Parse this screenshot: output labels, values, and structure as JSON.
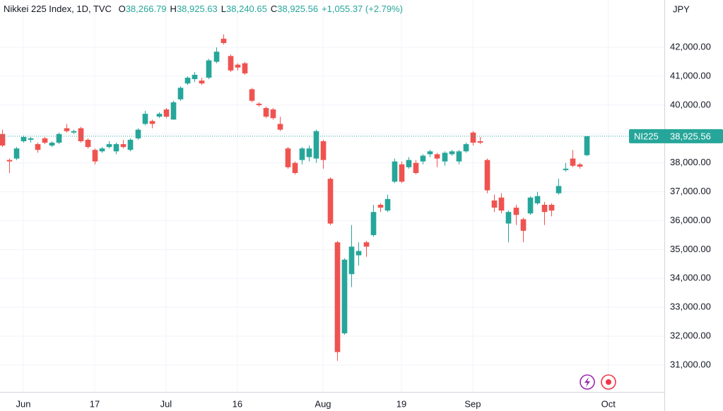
{
  "chart_data": {
    "type": "candlestick",
    "header": {
      "title": "Nikkei 225 Index, 1D, TVC",
      "items": [
        {
          "key": "O",
          "value": "38,266.79"
        },
        {
          "key": "H",
          "value": "38,925.63"
        },
        {
          "key": "L",
          "value": "38,240.65"
        },
        {
          "key": "C",
          "value": "38,925.56"
        }
      ],
      "change": "+1,055.37 (+2.79%)"
    },
    "currency": "JPY",
    "last_price": {
      "symbol": "NI225",
      "value": 38925.56,
      "label": "38,925.56"
    },
    "up_color": "#26a69a",
    "down_color": "#ef5350",
    "open": [
      39000,
      38100,
      38150,
      38750,
      38800,
      38650,
      38850,
      38600,
      38700,
      39200,
      39050,
      39200,
      38800,
      38450,
      38400,
      38550,
      38400,
      38650,
      38450,
      38850,
      39350,
      39450,
      39600,
      39850,
      39500,
      40200,
      40750,
      40900,
      40850,
      40950,
      41500,
      42300,
      41700,
      41400,
      41450,
      40550,
      40050,
      39900,
      39850,
      39350,
      38500,
      38000,
      38100,
      38200,
      38150,
      38750,
      37450,
      35250,
      32100,
      34150,
      34800,
      35250,
      35500,
      36550,
      36350,
      37350,
      37950,
      37850,
      38000,
      38050,
      38300,
      38300,
      38050,
      38300,
      38050,
      38400,
      39050,
      38750,
      38100,
      36700,
      36800,
      35900,
      36450,
      36050,
      36250,
      36600,
      36550,
      36550,
      36950,
      37750,
      38150,
      37950,
      38266.79
    ],
    "high": [
      39150,
      38150,
      38550,
      38950,
      38900,
      38700,
      38900,
      38750,
      39050,
      39350,
      39150,
      39250,
      38850,
      38500,
      38550,
      38750,
      38700,
      38800,
      38850,
      39200,
      39800,
      39500,
      39750,
      39900,
      40150,
      40650,
      41000,
      41150,
      40950,
      41600,
      42000,
      42450,
      41750,
      41450,
      41500,
      40600,
      40100,
      39950,
      39900,
      39600,
      38550,
      38050,
      38550,
      38600,
      39150,
      38800,
      37500,
      35300,
      34700,
      35850,
      35250,
      35300,
      36550,
      36600,
      36900,
      38150,
      38050,
      38200,
      38100,
      38300,
      38450,
      38350,
      38400,
      38450,
      38450,
      38700,
      39100,
      38900,
      38150,
      36900,
      36950,
      36350,
      36550,
      36100,
      36850,
      37000,
      36650,
      36600,
      37450,
      38000,
      38450,
      38000,
      38925.63
    ],
    "low": [
      38550,
      37650,
      38100,
      38700,
      38700,
      38350,
      38650,
      38550,
      38650,
      39050,
      39000,
      38700,
      38500,
      37950,
      38350,
      38500,
      38300,
      38500,
      38400,
      38800,
      39300,
      39200,
      39550,
      39550,
      39500,
      40150,
      40700,
      40800,
      40700,
      40900,
      41450,
      42100,
      41150,
      41200,
      41050,
      40100,
      39950,
      39550,
      39500,
      39100,
      37800,
      37600,
      37950,
      38050,
      38000,
      37800,
      35850,
      31150,
      32050,
      33700,
      34450,
      34750,
      35450,
      36300,
      36300,
      37300,
      37300,
      37800,
      37600,
      37950,
      38200,
      37850,
      37900,
      38250,
      37950,
      38350,
      38600,
      38650,
      36950,
      36300,
      36250,
      35250,
      35850,
      35250,
      36200,
      36550,
      35850,
      36150,
      36900,
      37700,
      37850,
      37800,
      38240.65
    ],
    "close": [
      38600,
      38050,
      38500,
      38900,
      38850,
      38450,
      38700,
      38700,
      39000,
      39100,
      39100,
      38750,
      38550,
      38050,
      38500,
      38650,
      38650,
      38550,
      38800,
      39150,
      39700,
      39350,
      39700,
      39600,
      40100,
      40600,
      40950,
      41050,
      40750,
      41550,
      41850,
      42150,
      41200,
      41300,
      41100,
      40150,
      40000,
      39600,
      39550,
      39150,
      37850,
      37650,
      38500,
      38500,
      39100,
      38100,
      35900,
      31450,
      34650,
      35100,
      34950,
      35100,
      36300,
      36450,
      36750,
      38050,
      37350,
      38100,
      37650,
      38250,
      38400,
      38150,
      38350,
      38400,
      38400,
      38650,
      38700,
      38700,
      37050,
      36450,
      36350,
      36300,
      36200,
      35650,
      36800,
      36850,
      36300,
      36350,
      37200,
      37800,
      37900,
      37870.19,
      38925.56
    ],
    "xlim": [
      -0.27,
      92.85
    ],
    "xticks": [
      {
        "value": 3,
        "label": "Jun"
      },
      {
        "value": 13,
        "label": "17"
      },
      {
        "value": 23,
        "label": "Jul"
      },
      {
        "value": 33,
        "label": "16"
      },
      {
        "value": 45,
        "label": "Aug"
      },
      {
        "value": 56,
        "label": "19"
      },
      {
        "value": 66,
        "label": "Sep"
      },
      {
        "value": 85,
        "label": "Oct"
      }
    ],
    "ylim": [
      30070,
      43640
    ],
    "yticks": [
      {
        "value": 31000,
        "label": "31,000.00"
      },
      {
        "value": 32000,
        "label": "32,000.00"
      },
      {
        "value": 33000,
        "label": "33,000.00"
      },
      {
        "value": 34000,
        "label": "34,000.00"
      },
      {
        "value": 35000,
        "label": "35,000.00"
      },
      {
        "value": 36000,
        "label": "36,000.00"
      },
      {
        "value": 37000,
        "label": "37,000.00"
      },
      {
        "value": 38000,
        "label": "38,000.00"
      },
      {
        "value": 39000,
        "label": "39,000.00"
      },
      {
        "value": 40000,
        "label": "40,000.00"
      },
      {
        "value": 41000,
        "label": "41,000.00"
      },
      {
        "value": 42000,
        "label": "42,000.00"
      }
    ],
    "grid": true
  }
}
